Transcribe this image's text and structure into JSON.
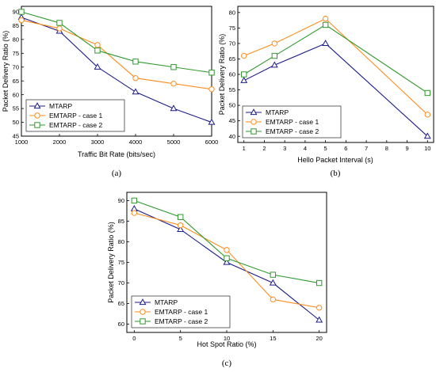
{
  "colors": {
    "MTARP": "#1c1c8a",
    "EMTARP - case 1": "#ff8c1a",
    "EMTARP - case 2": "#2f9a2f"
  },
  "chart_data": [
    {
      "type": "line",
      "panel_label": "(a)",
      "xlabel": "Traffic Bit Rate (bits/sec)",
      "ylabel": "Packet Delivery Ratio (%)",
      "x": [
        1000,
        2000,
        3000,
        4000,
        5000,
        6000
      ],
      "xticks": [
        1000,
        2000,
        3000,
        4000,
        5000,
        6000
      ],
      "yticks": [
        45,
        50,
        55,
        60,
        65,
        70,
        75,
        80,
        85,
        90
      ],
      "xlim": [
        1000,
        6000
      ],
      "ylim": [
        45,
        92
      ],
      "legend_position": "bottom-left",
      "series": [
        {
          "name": "MTARP",
          "marker": "triangle",
          "values": [
            88,
            83,
            70,
            61,
            55,
            50
          ]
        },
        {
          "name": "EMTARP - case 1",
          "marker": "circle",
          "values": [
            87,
            84,
            78,
            66,
            64,
            62
          ]
        },
        {
          "name": "EMTARP - case 2",
          "marker": "square",
          "values": [
            90,
            86,
            76,
            72,
            70,
            68
          ]
        }
      ]
    },
    {
      "type": "line",
      "panel_label": "(b)",
      "xlabel": "Hello Packet Interval (s)",
      "ylabel": "Packet Delivery Ratio (%)",
      "x": [
        1,
        2.5,
        5,
        10
      ],
      "xticks": [
        1,
        2,
        3,
        4,
        5,
        6,
        7,
        8,
        9,
        10
      ],
      "yticks": [
        40,
        45,
        50,
        55,
        60,
        65,
        70,
        75,
        80
      ],
      "xlim": [
        0.7,
        10.3
      ],
      "ylim": [
        38,
        82
      ],
      "legend_position": "bottom-left",
      "series": [
        {
          "name": "MTARP",
          "marker": "triangle",
          "values": [
            58,
            63,
            70,
            40
          ]
        },
        {
          "name": "EMTARP - case 1",
          "marker": "circle",
          "values": [
            66,
            70,
            78,
            47
          ]
        },
        {
          "name": "EMTARP - case 2",
          "marker": "square",
          "values": [
            60,
            66,
            76,
            54
          ]
        }
      ]
    },
    {
      "type": "line",
      "panel_label": "(c)",
      "xlabel": "Hot Spot Ratio (%)",
      "ylabel": "Packet Delivery Ratio (%)",
      "x": [
        0,
        5,
        10,
        15,
        20
      ],
      "xticks": [
        0,
        5,
        10,
        15,
        20
      ],
      "yticks": [
        60,
        65,
        70,
        75,
        80,
        85,
        90
      ],
      "xlim": [
        -0.8,
        20.8
      ],
      "ylim": [
        58,
        92
      ],
      "legend_position": "bottom-left",
      "series": [
        {
          "name": "MTARP",
          "marker": "triangle",
          "values": [
            88,
            83,
            75,
            70,
            61
          ]
        },
        {
          "name": "EMTARP - case 1",
          "marker": "circle",
          "values": [
            87,
            84,
            78,
            66,
            64
          ]
        },
        {
          "name": "EMTARP - case 2",
          "marker": "square",
          "values": [
            90,
            86,
            76,
            72,
            70
          ]
        }
      ]
    }
  ]
}
